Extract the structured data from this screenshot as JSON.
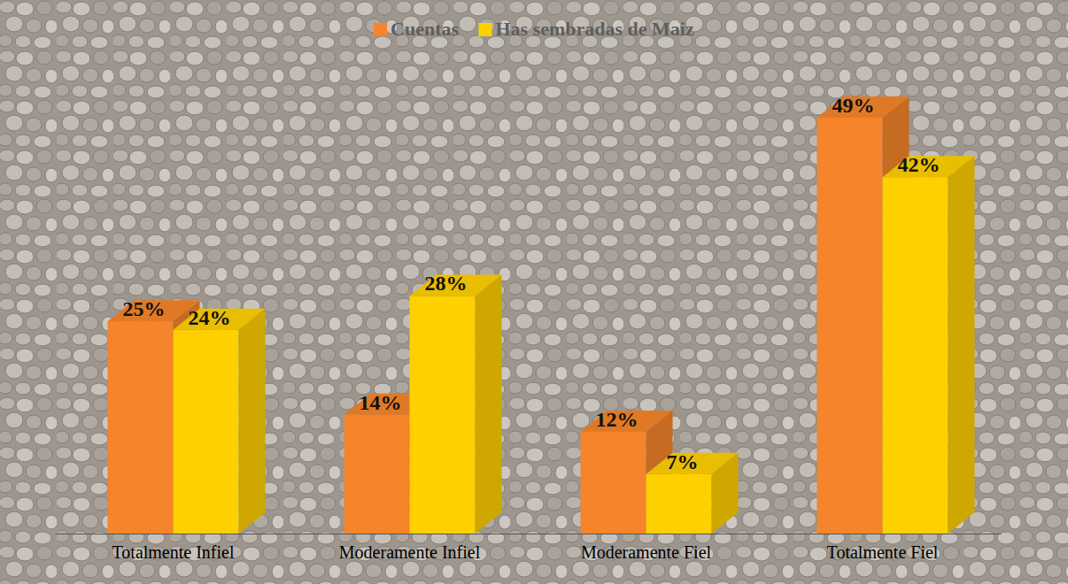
{
  "chart_data": {
    "type": "bar",
    "categories": [
      "Totalmente Infiel",
      "Moderamente Infiel",
      "Moderamente Fiel",
      "Totalmente Fiel"
    ],
    "series": [
      {
        "name": "Cuentas",
        "color": "#f5842a",
        "values": [
          25,
          14,
          12,
          49
        ],
        "value_labels": [
          "25%",
          "14%",
          "12%",
          "49%"
        ]
      },
      {
        "name": "Has sembradas de Maiz",
        "color": "#ffd000",
        "values": [
          24,
          28,
          7,
          42
        ],
        "value_labels": [
          "24%",
          "28%",
          "7%",
          "42%"
        ]
      }
    ],
    "data_labels": true,
    "legend": "top",
    "tick_labels": "x"
  }
}
